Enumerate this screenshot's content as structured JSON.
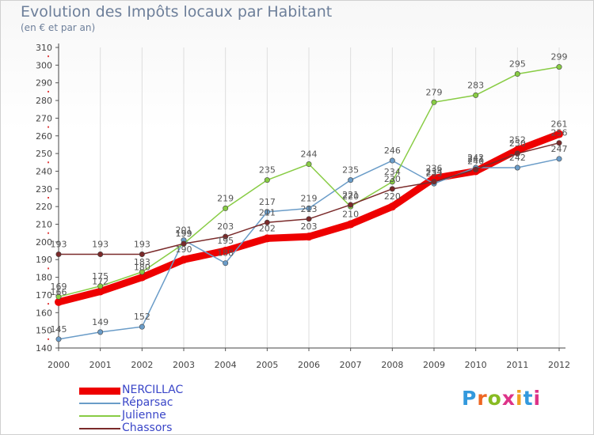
{
  "title": "Evolution des Impôts locaux par Habitant",
  "subtitle": "(en € et par an)",
  "brand": "Proxiti",
  "chart_data": {
    "type": "line",
    "title": "Evolution des Impôts locaux par Habitant",
    "ylabel": "(en € et par an)",
    "xlabel": "",
    "ylim": [
      140,
      310
    ],
    "ytick_step": 10,
    "x": [
      "2000",
      "2001",
      "2002",
      "2003",
      "2004",
      "2005",
      "2006",
      "2007",
      "2008",
      "2009",
      "2010",
      "2011",
      "2012"
    ],
    "legend_position": "bottom-left",
    "series": [
      {
        "name": "NERCILLAC",
        "color": "#ee0000",
        "values": [
          166,
          172,
          180,
          190,
          195,
          202,
          203,
          210,
          220,
          236,
          240,
          252,
          261
        ],
        "labels": [
          "166",
          "172",
          "180",
          "190",
          "195",
          "202",
          "203",
          "210",
          "220",
          "236",
          "240",
          "252",
          "261"
        ]
      },
      {
        "name": "Réparsac",
        "color": "#6a9cc8",
        "values": [
          145,
          149,
          152,
          201,
          188,
          217,
          219,
          235,
          246,
          233,
          242,
          242,
          247
        ],
        "labels": [
          "145",
          "149",
          "152",
          "201",
          "188",
          "217",
          "219",
          "235",
          "246",
          "233",
          "242",
          "242",
          "247"
        ]
      },
      {
        "name": "Julienne",
        "color": "#88cc44",
        "values": [
          169,
          175,
          183,
          199,
          219,
          235,
          244,
          220,
          234,
          279,
          283,
          295,
          299
        ],
        "labels": [
          "169",
          "175",
          "183",
          "199",
          "219",
          "235",
          "244",
          "220",
          "234",
          "279",
          "283",
          "295",
          "299"
        ]
      },
      {
        "name": "Chassors",
        "color": "#7a2a2a",
        "values": [
          193,
          193,
          193,
          199,
          203,
          211,
          213,
          221,
          230,
          234,
          241,
          250,
          256
        ],
        "labels": [
          "193",
          "193",
          "193",
          "199",
          "203",
          "211",
          "213",
          "221",
          "230",
          "234",
          "241",
          "250",
          "256"
        ]
      }
    ]
  }
}
